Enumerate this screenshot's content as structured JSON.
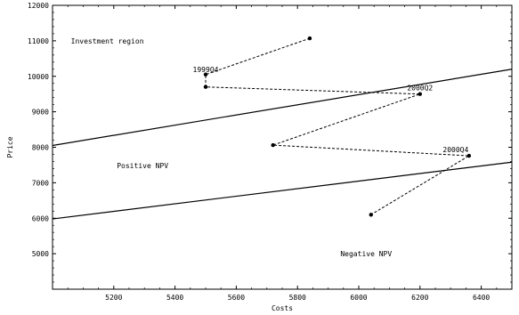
{
  "chart_data": {
    "type": "scatter",
    "title": "",
    "xlabel": "Costs",
    "ylabel": "Price",
    "xlim": [
      5000,
      6500
    ],
    "ylim": [
      4000,
      12000
    ],
    "xticks": [
      5200,
      5400,
      5600,
      5800,
      6000,
      6200,
      6400
    ],
    "yticks": [
      5000,
      6000,
      7000,
      8000,
      9000,
      10000,
      11000,
      12000
    ],
    "grid": false,
    "legend": "none",
    "annotations": [
      {
        "text": "Investment region",
        "x": 5060,
        "y": 11000
      },
      {
        "text": "Positive NPV",
        "x": 5210,
        "y": 7480
      },
      {
        "text": "Negative NPV",
        "x": 5940,
        "y": 5000
      }
    ],
    "boundary_lines": [
      {
        "x": [
          5000,
          6500
        ],
        "y": [
          8050,
          10200
        ]
      },
      {
        "x": [
          5000,
          6500
        ],
        "y": [
          5980,
          7580
        ]
      }
    ],
    "path": {
      "style": "dashed",
      "points": [
        {
          "x": 5840,
          "y": 11070,
          "label": ""
        },
        {
          "x": 5500,
          "y": 10050,
          "label": "1999Q4"
        },
        {
          "x": 5500,
          "y": 9700,
          "label": ""
        },
        {
          "x": 6200,
          "y": 9500,
          "label": "2000Q2"
        },
        {
          "x": 5720,
          "y": 8060,
          "label": ""
        },
        {
          "x": 6360,
          "y": 7760,
          "label": "2000Q4"
        },
        {
          "x": 6040,
          "y": 6100,
          "label": ""
        }
      ]
    }
  }
}
